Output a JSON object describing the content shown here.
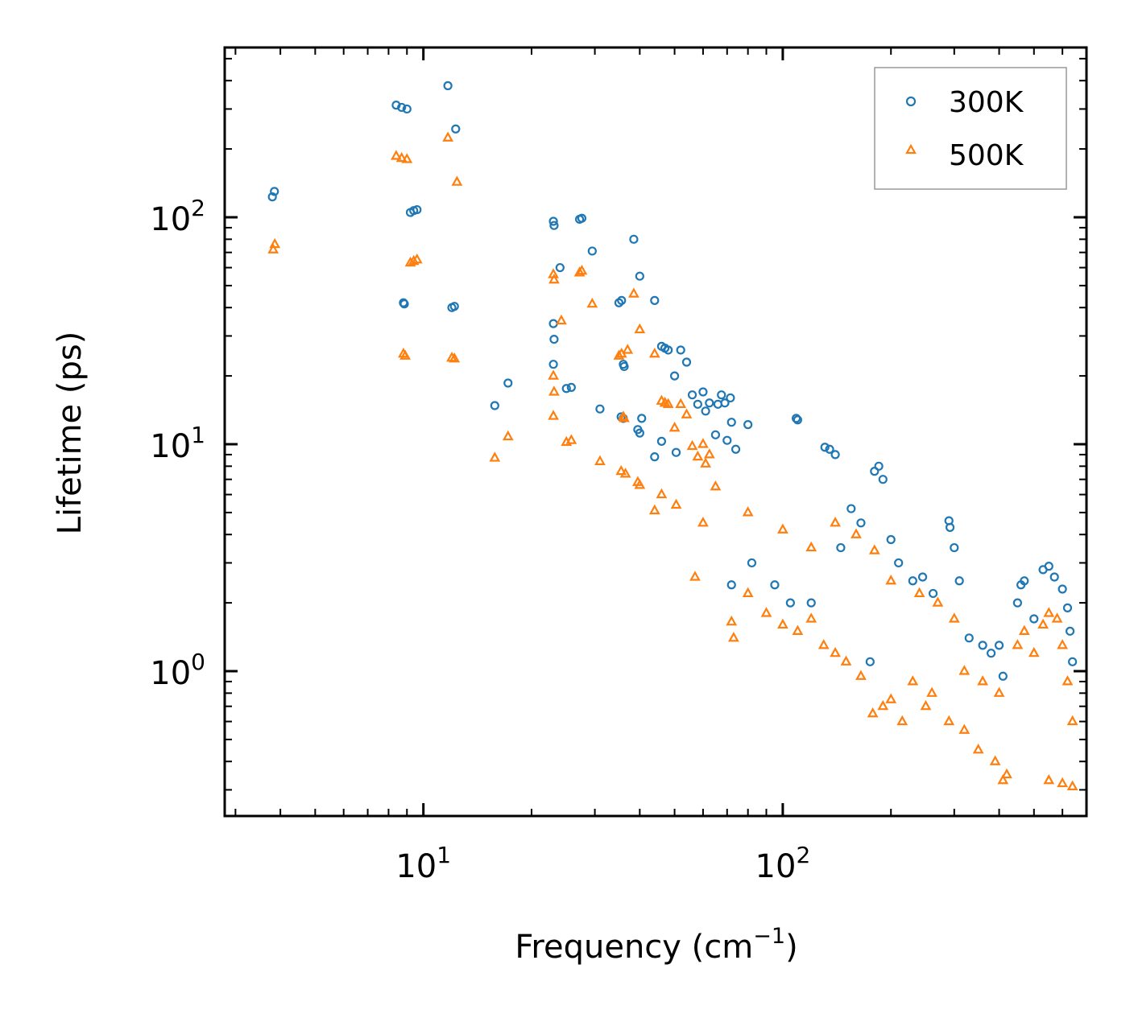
{
  "chart_data": {
    "type": "scatter",
    "x_scale": "log",
    "y_scale": "log",
    "xlabel": "Frequency (cm",
    "xlabel_sup": "−1",
    "xlabel_end": ")",
    "ylabel": "Lifetime (ps)",
    "xlim": [
      2.8,
      700
    ],
    "ylim": [
      0.23,
      560
    ],
    "x_ticks": [
      {
        "value": 10,
        "base": "10",
        "exp": "1"
      },
      {
        "value": 100,
        "base": "10",
        "exp": "2"
      }
    ],
    "y_ticks": [
      {
        "value": 1,
        "base": "10",
        "exp": "0"
      },
      {
        "value": 10,
        "base": "10",
        "exp": "1"
      },
      {
        "value": 100,
        "base": "10",
        "exp": "2"
      }
    ],
    "legend_position": "top-right",
    "series": [
      {
        "name": "300K",
        "marker": "circle",
        "color": "#1f77b4",
        "points": [
          [
            3.8,
            123
          ],
          [
            3.85,
            130
          ],
          [
            8.4,
            312
          ],
          [
            8.7,
            305
          ],
          [
            9.0,
            300
          ],
          [
            8.8,
            42
          ],
          [
            8.85,
            41.5
          ],
          [
            9.2,
            105
          ],
          [
            9.4,
            107
          ],
          [
            9.6,
            108
          ],
          [
            11.7,
            380
          ],
          [
            12.3,
            245
          ],
          [
            12.0,
            40
          ],
          [
            12.2,
            40.5
          ],
          [
            15.8,
            14.8
          ],
          [
            17.2,
            18.6
          ],
          [
            23.0,
            96
          ],
          [
            23.1,
            92
          ],
          [
            23.0,
            34
          ],
          [
            23.1,
            29
          ],
          [
            23.0,
            22.5
          ],
          [
            24.0,
            60
          ],
          [
            25.0,
            17.6
          ],
          [
            25.8,
            17.8
          ],
          [
            27.2,
            98
          ],
          [
            27.6,
            99
          ],
          [
            29.5,
            71
          ],
          [
            31.0,
            14.3
          ],
          [
            35.0,
            42
          ],
          [
            35.6,
            43
          ],
          [
            36.0,
            22.5
          ],
          [
            36.2,
            22
          ],
          [
            35.5,
            13.2
          ],
          [
            36.0,
            13.0
          ],
          [
            38.5,
            80
          ],
          [
            40.0,
            55
          ],
          [
            40.5,
            13.0
          ],
          [
            39.5,
            11.6
          ],
          [
            40.0,
            11.2
          ],
          [
            44.0,
            43
          ],
          [
            44.0,
            8.8
          ],
          [
            46.0,
            27
          ],
          [
            47.0,
            26.5
          ],
          [
            48.0,
            26
          ],
          [
            46.0,
            10.3
          ],
          [
            50.0,
            20
          ],
          [
            50.5,
            9.2
          ],
          [
            52.0,
            26
          ],
          [
            54.0,
            23
          ],
          [
            56.0,
            16.5
          ],
          [
            58.0,
            15
          ],
          [
            60.0,
            17
          ],
          [
            61.0,
            14
          ],
          [
            62.5,
            15.2
          ],
          [
            65.0,
            11
          ],
          [
            66.0,
            15
          ],
          [
            67.5,
            16.5
          ],
          [
            69.0,
            15.2
          ],
          [
            71.5,
            16.0
          ],
          [
            70.0,
            10.4
          ],
          [
            72.0,
            12.5
          ],
          [
            74.0,
            9.5
          ],
          [
            80.0,
            12.2
          ],
          [
            109.0,
            13.0
          ],
          [
            110.0,
            12.8
          ],
          [
            131.0,
            9.7
          ],
          [
            135.0,
            9.5
          ],
          [
            140.0,
            9.0
          ],
          [
            180.0,
            7.6
          ],
          [
            185.0,
            8.0
          ],
          [
            190.0,
            7.0
          ],
          [
            72.0,
            2.4
          ],
          [
            82.0,
            3.0
          ],
          [
            95.0,
            2.4
          ],
          [
            105.0,
            2.0
          ],
          [
            120.0,
            2.0
          ],
          [
            145.0,
            3.5
          ],
          [
            155.0,
            5.2
          ],
          [
            165.0,
            4.5
          ],
          [
            175.0,
            1.1
          ],
          [
            200.0,
            3.8
          ],
          [
            210.0,
            3.0
          ],
          [
            230.0,
            2.5
          ],
          [
            245.0,
            2.6
          ],
          [
            262.0,
            2.2
          ],
          [
            290.0,
            4.6
          ],
          [
            292.0,
            4.3
          ],
          [
            300.0,
            3.5
          ],
          [
            310.0,
            2.5
          ],
          [
            330.0,
            1.4
          ],
          [
            360.0,
            1.3
          ],
          [
            380.0,
            1.2
          ],
          [
            400.0,
            1.3
          ],
          [
            410.0,
            0.95
          ],
          [
            450.0,
            2.0
          ],
          [
            460.0,
            2.4
          ],
          [
            470.0,
            2.5
          ],
          [
            500.0,
            1.7
          ],
          [
            530.0,
            2.8
          ],
          [
            550.0,
            2.9
          ],
          [
            570.0,
            2.6
          ],
          [
            600.0,
            2.3
          ],
          [
            620.0,
            1.9
          ],
          [
            630.0,
            1.5
          ],
          [
            640.0,
            1.1
          ]
        ]
      },
      {
        "name": "500K",
        "marker": "triangle",
        "color": "#ff7f0e",
        "points": [
          [
            3.82,
            72
          ],
          [
            3.86,
            76
          ],
          [
            8.4,
            186
          ],
          [
            8.7,
            182
          ],
          [
            9.0,
            180
          ],
          [
            8.8,
            25
          ],
          [
            8.9,
            24.5
          ],
          [
            9.2,
            63
          ],
          [
            9.4,
            64
          ],
          [
            9.6,
            65
          ],
          [
            11.7,
            224
          ],
          [
            12.4,
            143
          ],
          [
            12.0,
            24
          ],
          [
            12.2,
            23.8
          ],
          [
            15.8,
            8.7
          ],
          [
            17.2,
            10.8
          ],
          [
            23.0,
            56
          ],
          [
            23.1,
            53
          ],
          [
            23.0,
            20
          ],
          [
            23.1,
            17
          ],
          [
            23.0,
            13.3
          ],
          [
            24.2,
            35
          ],
          [
            25.0,
            10.2
          ],
          [
            25.8,
            10.4
          ],
          [
            27.2,
            57
          ],
          [
            27.6,
            58
          ],
          [
            29.5,
            41.5
          ],
          [
            31.0,
            8.4
          ],
          [
            35.0,
            24.5
          ],
          [
            35.6,
            25
          ],
          [
            36.0,
            13.2
          ],
          [
            36.2,
            13.0
          ],
          [
            35.5,
            7.6
          ],
          [
            36.5,
            7.4
          ],
          [
            37.0,
            26
          ],
          [
            38.5,
            46
          ],
          [
            40.0,
            32
          ],
          [
            39.5,
            6.8
          ],
          [
            40.0,
            6.6
          ],
          [
            44.0,
            25
          ],
          [
            44.0,
            5.1
          ],
          [
            46.0,
            15.5
          ],
          [
            47.0,
            15.2
          ],
          [
            48.0,
            15.0
          ],
          [
            46.0,
            6.0
          ],
          [
            50.0,
            11.8
          ],
          [
            50.5,
            5.4
          ],
          [
            52.0,
            15.0
          ],
          [
            54.0,
            13.5
          ],
          [
            56.0,
            9.8
          ],
          [
            58.0,
            8.8
          ],
          [
            60.0,
            10.0
          ],
          [
            61.0,
            8.2
          ],
          [
            62.5,
            9.0
          ],
          [
            65.0,
            6.5
          ],
          [
            57.0,
            2.6
          ],
          [
            60.0,
            4.5
          ],
          [
            72.0,
            1.65
          ],
          [
            73.0,
            1.4
          ],
          [
            80.0,
            2.2
          ],
          [
            90.0,
            1.8
          ],
          [
            100.0,
            1.6
          ],
          [
            110.0,
            1.5
          ],
          [
            120.0,
            1.7
          ],
          [
            130.0,
            1.3
          ],
          [
            140.0,
            1.2
          ],
          [
            150.0,
            1.1
          ],
          [
            165.0,
            0.95
          ],
          [
            178.0,
            0.65
          ],
          [
            190.0,
            0.7
          ],
          [
            200.0,
            0.75
          ],
          [
            215.0,
            0.6
          ],
          [
            230.0,
            0.9
          ],
          [
            250.0,
            0.7
          ],
          [
            260.0,
            0.8
          ],
          [
            290.0,
            0.6
          ],
          [
            320.0,
            0.55
          ],
          [
            350.0,
            0.45
          ],
          [
            390.0,
            0.4
          ],
          [
            410.0,
            0.33
          ],
          [
            420.0,
            0.35
          ],
          [
            80.0,
            5.0
          ],
          [
            100.0,
            4.2
          ],
          [
            120.0,
            3.5
          ],
          [
            140.0,
            4.5
          ],
          [
            160.0,
            4.0
          ],
          [
            180.0,
            3.4
          ],
          [
            200.0,
            2.5
          ],
          [
            240.0,
            2.2
          ],
          [
            270.0,
            2.0
          ],
          [
            300.0,
            1.7
          ],
          [
            320.0,
            1.0
          ],
          [
            360.0,
            0.9
          ],
          [
            400.0,
            0.8
          ],
          [
            450.0,
            1.3
          ],
          [
            470.0,
            1.5
          ],
          [
            500.0,
            1.2
          ],
          [
            530.0,
            1.6
          ],
          [
            550.0,
            1.8
          ],
          [
            580.0,
            1.7
          ],
          [
            600.0,
            1.3
          ],
          [
            620.0,
            0.9
          ],
          [
            640.0,
            0.6
          ],
          [
            550.0,
            0.33
          ],
          [
            600.0,
            0.32
          ],
          [
            640.0,
            0.31
          ]
        ]
      }
    ]
  }
}
